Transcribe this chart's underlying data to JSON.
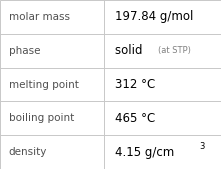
{
  "rows": [
    {
      "label": "molar mass",
      "value": "197.84 g/mol",
      "type": "plain"
    },
    {
      "label": "phase",
      "value_main": "solid",
      "value_suffix": "(at STP)",
      "type": "mixed"
    },
    {
      "label": "melting point",
      "value": "312 °C",
      "type": "plain"
    },
    {
      "label": "boiling point",
      "value": "465 °C",
      "type": "plain"
    },
    {
      "label": "density",
      "value": "4.15 g/cm",
      "superscript": "3",
      "type": "super"
    }
  ],
  "col_split": 0.47,
  "bg_color": "#ffffff",
  "border_color": "#c8c8c8",
  "label_color": "#505050",
  "value_color": "#000000",
  "suffix_color": "#808080",
  "label_fontsize": 7.5,
  "value_fontsize": 8.5,
  "suffix_fontsize": 6.0,
  "super_fontsize": 6.0,
  "font_family": "DejaVu Sans"
}
